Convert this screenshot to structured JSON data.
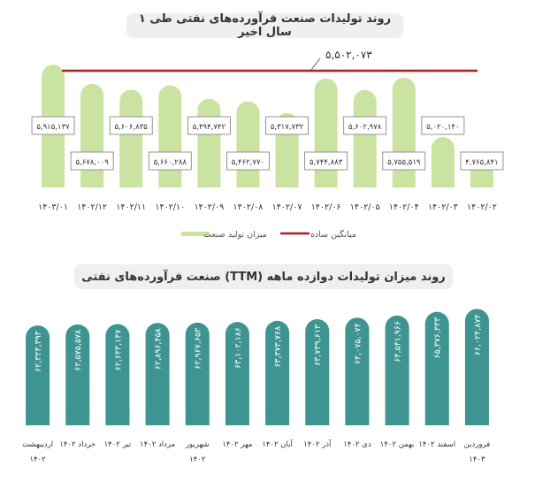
{
  "chart_data": [
    {
      "type": "bar",
      "title": "روند تولیدات صنعت فرآورده‌های نفتی طی ۱ سال اخیر",
      "categories": [
        "۱۴۰۲/۰۲",
        "۱۴۰۲/۰۳",
        "۱۴۰۲/۰۴",
        "۱۴۰۲/۰۵",
        "۱۴۰۲/۰۶",
        "۱۴۰۲/۰۷",
        "۱۴۰۲/۰۸",
        "۱۴۰۲/۰۹",
        "۱۴۰۲/۱۰",
        "۱۴۰۲/۱۱",
        "۱۴۰۲/۱۲",
        "۱۴۰۳/۰۱"
      ],
      "values": [
        4765841,
        5020140,
        5755519,
        5602978,
        5744883,
        5317732,
        5462770,
        5494742,
        5660288,
        5606835,
        5678009,
        5915137
      ],
      "labels": [
        "۴,۷۶۵,۸۴۱",
        "۵,۰۲۰,۱۴۰",
        "۵,۷۵۵,۵۱۹",
        "۵,۶۰۲,۹۷۸",
        "۵,۷۴۴,۸۸۳",
        "۵,۳۱۷,۷۳۲",
        "۵,۴۶۲,۷۷۰",
        "۵,۴۹۴,۷۴۲",
        "۵,۶۶۰,۲۸۸",
        "۵,۶۰۶,۸۳۵",
        "۵,۶۷۸,۰۰۹",
        "۵,۹۱۵,۱۳۷"
      ],
      "average": {
        "value": 5502073,
        "label": "۵,۵۰۲,۰۷۳"
      },
      "legend": [
        "میزان تولید صنعت",
        "میانگین ساده"
      ],
      "legend_position": "bottom",
      "colors": {
        "bars": "#cbe3a0",
        "average_line": "#b01d1d"
      }
    },
    {
      "type": "bar",
      "title": "روند میزان تولیدات دوازده ماهه (TTM) صنعت فرآورده‌های نفتی",
      "categories_line1": [
        "اردیبهشت",
        "خرداد ۱۴۰۲",
        "تیر ۱۴۰۲",
        "مرداد ۱۴۰۲",
        "شهریور",
        "مهر ۱۴۰۲",
        "آبان ۱۴۰۲",
        "آذر ۱۴۰۲",
        "دی ۱۴۰۲",
        "بهمن ۱۴۰۲",
        "اسفند ۱۴۰۲",
        "فروردین"
      ],
      "categories_line2": [
        "۱۴۰۲",
        "",
        "",
        "",
        "۱۴۰۲",
        "",
        "",
        "",
        "",
        "",
        "",
        "۱۴۰۳"
      ],
      "values": [
        62324393,
        62575578,
        62643147,
        62896458,
        62967653,
        63102186,
        63373768,
        63739613,
        64075074,
        64541966,
        65376333,
        66024874
      ],
      "labels": [
        "۶۲,۳۲۴,۳۹۳",
        "۶۲,۵۷۵,۵۷۸",
        "۶۲,۶۴۳,۱۴۷",
        "۶۲,۸۹۶,۴۵۸",
        "۶۲,۹۶۷,۶۵۳",
        "۶۳,۱۰۲,۱۸۶",
        "۶۳,۳۷۳,۷۶۸",
        "۶۳,۷۳۹,۶۱۳",
        "۶۴,۰۷۵,۰۷۴",
        "۶۴,۵۴۱,۹۶۶",
        "۶۵,۳۷۶,۳۳۳",
        "۶۶,۰۲۴,۸۷۴"
      ],
      "colors": {
        "bars": "#3e9490"
      }
    }
  ]
}
